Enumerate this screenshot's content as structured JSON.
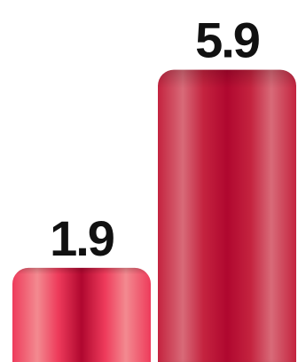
{
  "chart_data": {
    "type": "bar",
    "categories": [
      "",
      ""
    ],
    "values": [
      1.9,
      5.9
    ],
    "value_labels": [
      "1.9",
      "5.9"
    ],
    "title": "",
    "xlabel": "",
    "ylabel": "",
    "ylim": [
      0,
      6.0
    ],
    "grid": false,
    "legend": "none",
    "bar_colors": [
      "#ee3b5b",
      "#c4233f"
    ],
    "bar_highlight_colors": [
      "#f38a90",
      "#d86a78"
    ]
  }
}
